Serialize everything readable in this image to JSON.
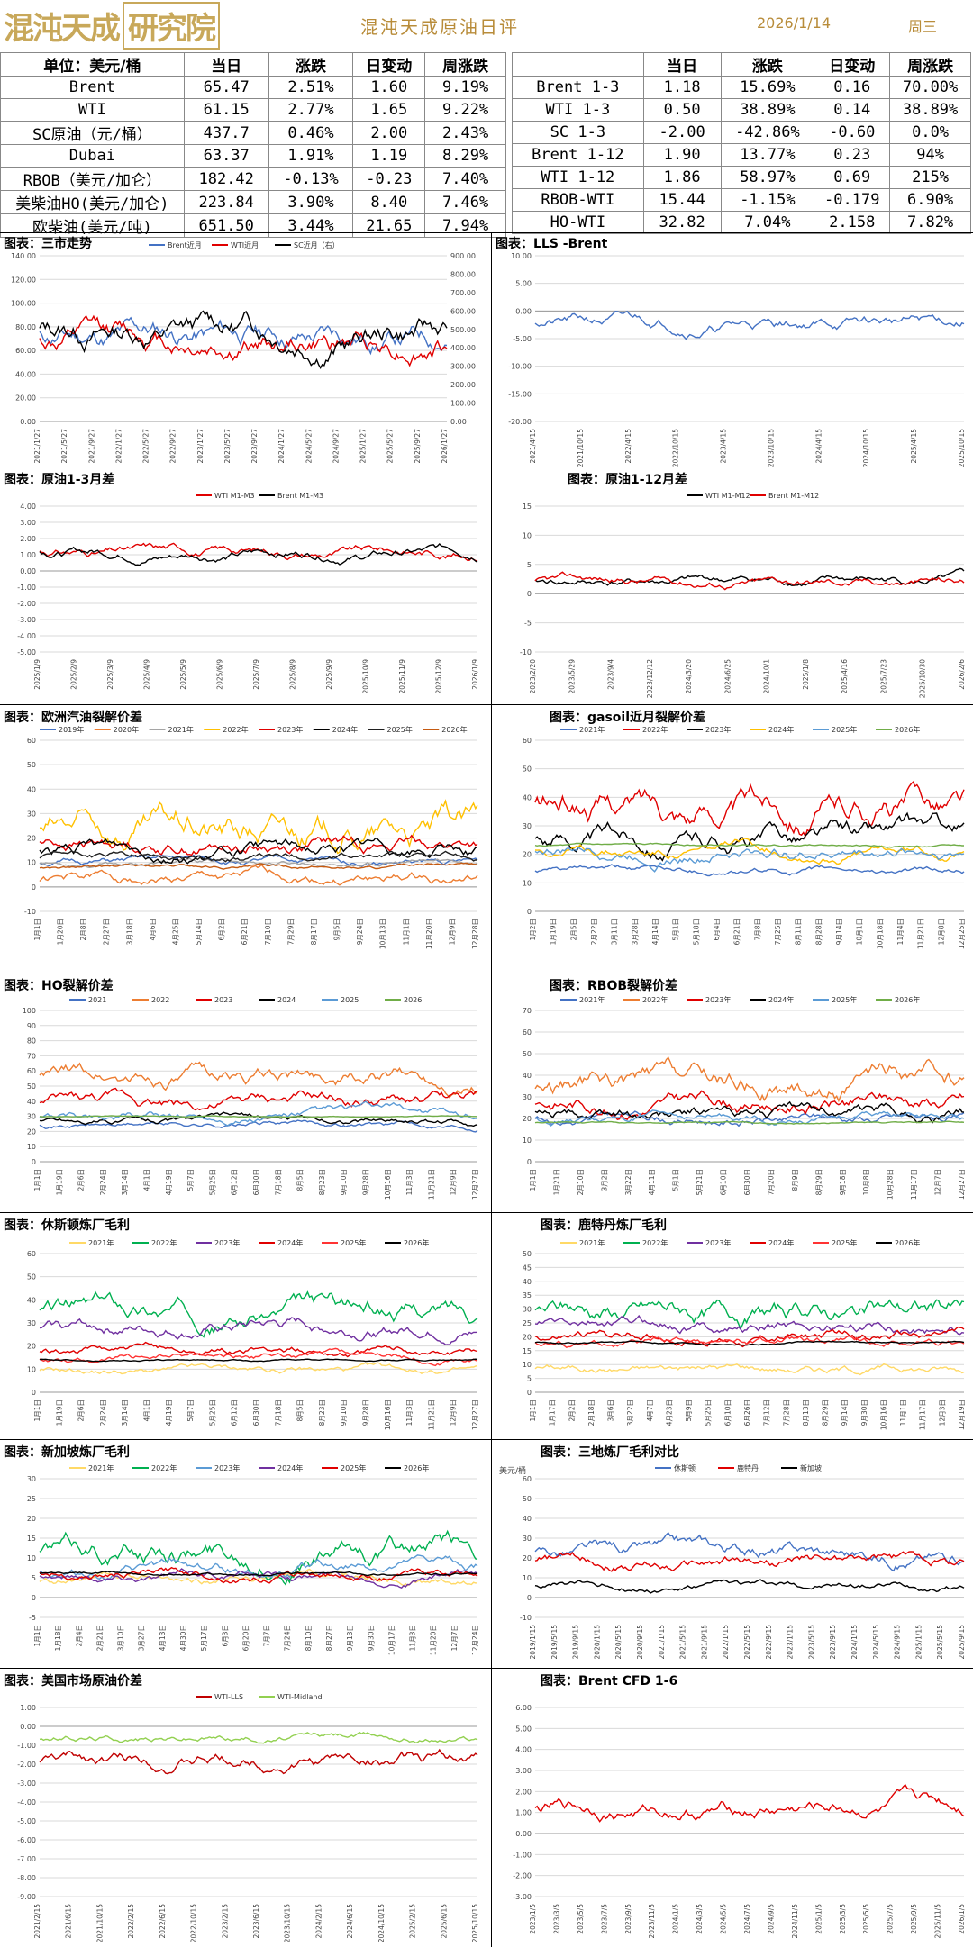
{
  "header": {
    "logo_text": "混沌天成",
    "logo_box": "研究院",
    "title": "混沌天成原油日评",
    "date": "2026/1/14",
    "weekday": "周三"
  },
  "left_table": {
    "columns": [
      "单位：美元/桶",
      "当日",
      "涨跌",
      "日变动",
      "周涨跌"
    ],
    "rows": [
      [
        "Brent",
        "65.47",
        "2.51%",
        "1.60",
        "9.19%"
      ],
      [
        "WTI",
        "61.15",
        "2.77%",
        "1.65",
        "9.22%"
      ],
      [
        "SC原油（元/桶）",
        "437.7",
        "0.46%",
        "2.00",
        "2.43%"
      ],
      [
        "Dubai",
        "63.37",
        "1.91%",
        "1.19",
        "8.29%"
      ],
      [
        "RBOB（美元/加仑）",
        "182.42",
        "-0.13%",
        "-0.23",
        "7.40%"
      ],
      [
        "美柴油HO(美元/加仑)",
        "223.84",
        "3.90%",
        "8.40",
        "7.46%"
      ],
      [
        "欧柴油(美元/吨)",
        "651.50",
        "3.44%",
        "21.65",
        "7.94%"
      ]
    ]
  },
  "right_table": {
    "columns": [
      "",
      "当日",
      "涨跌",
      "日变动",
      "周涨跌"
    ],
    "rows": [
      [
        "Brent 1-3",
        "1.18",
        "15.69%",
        "0.16",
        "70.00%"
      ],
      [
        "WTI 1-3",
        "0.50",
        "38.89%",
        "0.14",
        "38.89%"
      ],
      [
        "SC 1-3",
        "-2.00",
        "-42.86%",
        "-0.60",
        "0.0%"
      ],
      [
        "Brent 1-12",
        "1.90",
        "13.77%",
        "0.23",
        "94%"
      ],
      [
        "WTI 1-12",
        "1.86",
        "58.97%",
        "0.69",
        "215%"
      ],
      [
        "RBOB-WTI",
        "15.44",
        "-1.15%",
        "-0.179",
        "6.90%"
      ],
      [
        "HO-WTI",
        "32.82",
        "7.04%",
        "2.158",
        "7.82%"
      ]
    ]
  },
  "chart_data": [
    {
      "id": "c1",
      "panel_title": "图表：三市走势",
      "type": "line",
      "series": [
        {
          "name": "Brent近月",
          "color": "#4472c4",
          "seed": 11,
          "base": 72,
          "amp": 28
        },
        {
          "name": "WTI近月",
          "color": "#e00000",
          "seed": 12,
          "base": 68,
          "amp": 28
        },
        {
          "name": "SC近月（右）",
          "color": "#000000",
          "seed": 13,
          "base": 78,
          "amp": 30
        }
      ],
      "ylim": [
        0,
        140
      ],
      "yticks": [
        "0.00",
        "20.00",
        "40.00",
        "60.00",
        "80.00",
        "100.00",
        "120.00",
        "140.00"
      ],
      "y2ticks": [
        "0.00",
        "100.00",
        "200.00",
        "300.00",
        "400.00",
        "500.00",
        "600.00",
        "700.00",
        "800.00",
        "900.00"
      ],
      "xticks": [
        "2021/1/27",
        "2021/5/27",
        "2021/9/27",
        "2022/1/27",
        "2022/5/27",
        "2022/9/27",
        "2023/1/27",
        "2023/5/27",
        "2023/9/27",
        "2024/1/27",
        "2024/5/27",
        "2024/9/27",
        "2025/1/27",
        "2025/5/27",
        "2025/9/27",
        "2026/1/27"
      ]
    },
    {
      "id": "c2",
      "panel_title": "图表：LLS -Brent",
      "type": "line",
      "series": [
        {
          "name": "",
          "color": "#4472c4",
          "seed": 21,
          "base": -2,
          "amp": 3
        }
      ],
      "ylim": [
        -20,
        10
      ],
      "yticks": [
        "-20.00",
        "-15.00",
        "-10.00",
        "-5.00",
        "0.00",
        "5.00",
        "10.00"
      ],
      "xticks": [
        "2021/4/15",
        "2021/10/15",
        "2022/4/15",
        "2022/10/15",
        "2023/4/15",
        "2023/10/15",
        "2024/4/15",
        "2024/10/15",
        "2025/4/15",
        "2025/10/15"
      ]
    },
    {
      "id": "c3",
      "panel_title": "图表：原油1-3月差",
      "type": "line",
      "series": [
        {
          "name": "WTI M1-M3",
          "color": "#e00000",
          "seed": 31,
          "base": 1.2,
          "amp": 0.8
        },
        {
          "name": "Brent M1-M3",
          "color": "#000000",
          "seed": 32,
          "base": 1.2,
          "amp": 0.8
        }
      ],
      "ylim": [
        -5,
        4
      ],
      "yticks": [
        "-5.00",
        "-4.00",
        "-3.00",
        "-2.00",
        "-1.00",
        "0.00",
        "1.00",
        "2.00",
        "3.00",
        "4.00"
      ],
      "xticks": [
        "2025/1/9",
        "2025/2/9",
        "2025/3/9",
        "2025/4/9",
        "2025/5/9",
        "2025/6/9",
        "2025/7/9",
        "2025/8/9",
        "2025/9/9",
        "2025/10/9",
        "2025/11/9",
        "2025/12/9",
        "2026/1/9"
      ]
    },
    {
      "id": "c4",
      "panel_title": "图表：原油1-12月差",
      "type": "line",
      "series": [
        {
          "name": "WTI M1-M12",
          "color": "#000000",
          "seed": 41,
          "base": 2,
          "amp": 2
        },
        {
          "name": "Brent M1-M12",
          "color": "#e00000",
          "seed": 42,
          "base": 2,
          "amp": 2
        }
      ],
      "ylim": [
        -10,
        15
      ],
      "yticks": [
        "-10",
        "-5",
        "0",
        "5",
        "10",
        "15"
      ],
      "xticks": [
        "2023/2/20",
        "2023/5/29",
        "2023/9/4",
        "2023/12/12",
        "2024/3/20",
        "2024/6/25",
        "2024/10/1",
        "2025/1/8",
        "2025/4/16",
        "2025/7/23",
        "2025/10/30",
        "2026/2/6"
      ]
    },
    {
      "id": "c5",
      "panel_title": "图表：欧洲汽油裂解价差",
      "type": "line",
      "series": [
        {
          "name": "2019年",
          "color": "#4472c4",
          "seed": 51,
          "base": 10,
          "amp": 4
        },
        {
          "name": "2020年",
          "color": "#ed7d31",
          "seed": 52,
          "base": 3,
          "amp": 6
        },
        {
          "name": "2021年",
          "color": "#a5a5a5",
          "seed": 53,
          "base": 10,
          "amp": 3
        },
        {
          "name": "2022年",
          "color": "#ffc000",
          "seed": 54,
          "base": 22,
          "amp": 18
        },
        {
          "name": "2023年",
          "color": "#e00000",
          "seed": 55,
          "base": 18,
          "amp": 8
        },
        {
          "name": "2024年",
          "color": "#000000",
          "seed": 56,
          "base": 15,
          "amp": 8
        },
        {
          "name": "2025年",
          "color": "#1f1f1f",
          "seed": 57,
          "base": 12,
          "amp": 4
        },
        {
          "name": "2026年",
          "color": "#c55a11",
          "seed": 58,
          "base": 8,
          "amp": 2
        }
      ],
      "ylim": [
        -10,
        60
      ],
      "yticks": [
        "-10",
        "0",
        "10",
        "20",
        "30",
        "40",
        "50",
        "60"
      ],
      "xticks": [
        "1月1日",
        "1月20日",
        "2月8日",
        "2月27日",
        "3月18日",
        "4月6日",
        "4月25日",
        "5月14日",
        "6月2日",
        "6月21日",
        "7月10日",
        "7月29日",
        "8月17日",
        "9月5日",
        "9月24日",
        "10月13日",
        "11月1日",
        "11月20日",
        "12月9日",
        "12月28日"
      ]
    },
    {
      "id": "c6",
      "panel_title": "图表：gasoil近月裂解价差",
      "type": "line",
      "series": [
        {
          "name": "2021年",
          "color": "#4472c4",
          "seed": 61,
          "base": 14,
          "amp": 3
        },
        {
          "name": "2022年",
          "color": "#e00000",
          "seed": 62,
          "base": 38,
          "amp": 14
        },
        {
          "name": "2023年",
          "color": "#000000",
          "seed": 63,
          "base": 26,
          "amp": 10
        },
        {
          "name": "2024年",
          "color": "#ffc000",
          "seed": 64,
          "base": 22,
          "amp": 5
        },
        {
          "name": "2025年",
          "color": "#5b9bd5",
          "seed": 65,
          "base": 22,
          "amp": 6
        },
        {
          "name": "2026年",
          "color": "#70ad47",
          "seed": 66,
          "base": 23,
          "amp": 1
        }
      ],
      "ylim": [
        0,
        60
      ],
      "yticks": [
        "0",
        "10",
        "20",
        "30",
        "40",
        "50",
        "60"
      ],
      "xticks": [
        "1月2日",
        "1月19日",
        "2月5日",
        "2月22日",
        "3月11日",
        "3月28日",
        "4月14日",
        "5月1日",
        "5月18日",
        "6月4日",
        "6月21日",
        "7月8日",
        "7月25日",
        "8月11日",
        "8月28日",
        "9月14日",
        "10月1日",
        "10月18日",
        "11月4日",
        "11月21日",
        "12月8日",
        "12月25日"
      ]
    },
    {
      "id": "c7",
      "panel_title": "图表：HO裂解价差",
      "type": "line",
      "series": [
        {
          "name": "2021",
          "color": "#4472c4",
          "seed": 71,
          "base": 25,
          "amp": 5
        },
        {
          "name": "2022",
          "color": "#ed7d31",
          "seed": 72,
          "base": 55,
          "amp": 15
        },
        {
          "name": "2023",
          "color": "#e00000",
          "seed": 73,
          "base": 38,
          "amp": 12
        },
        {
          "name": "2024",
          "color": "#000000",
          "seed": 74,
          "base": 27,
          "amp": 6
        },
        {
          "name": "2025",
          "color": "#5b9bd5",
          "seed": 75,
          "base": 30,
          "amp": 8
        },
        {
          "name": "2026",
          "color": "#70ad47",
          "seed": 76,
          "base": 30,
          "amp": 1
        }
      ],
      "ylim": [
        0,
        100
      ],
      "yticks": [
        "0",
        "10",
        "20",
        "30",
        "40",
        "50",
        "60",
        "70",
        "80",
        "90",
        "100"
      ],
      "xticks": [
        "1月1日",
        "1月19日",
        "2月6日",
        "2月24日",
        "3月14日",
        "4月1日",
        "4月19日",
        "5月7日",
        "5月25日",
        "6月12日",
        "6月30日",
        "7月18日",
        "8月5日",
        "8月23日",
        "9月10日",
        "9月28日",
        "10月16日",
        "11月3日",
        "11月21日",
        "12月9日",
        "12月27日"
      ]
    },
    {
      "id": "c8",
      "panel_title": "图表：RBOB裂解价差",
      "type": "line",
      "series": [
        {
          "name": "2021年",
          "color": "#4472c4",
          "seed": 81,
          "base": 20,
          "amp": 6
        },
        {
          "name": "2022年",
          "color": "#ed7d31",
          "seed": 82,
          "base": 35,
          "amp": 14
        },
        {
          "name": "2023年",
          "color": "#e00000",
          "seed": 83,
          "base": 28,
          "amp": 10
        },
        {
          "name": "2024年",
          "color": "#000000",
          "seed": 84,
          "base": 22,
          "amp": 8
        },
        {
          "name": "2025年",
          "color": "#5b9bd5",
          "seed": 85,
          "base": 20,
          "amp": 5
        },
        {
          "name": "2026年",
          "color": "#70ad47",
          "seed": 86,
          "base": 18,
          "amp": 1
        }
      ],
      "ylim": [
        0,
        70
      ],
      "yticks": [
        "0",
        "10",
        "20",
        "30",
        "40",
        "50",
        "60",
        "70"
      ],
      "xticks": [
        "1月1日",
        "1月21日",
        "2月10日",
        "3月2日",
        "3月22日",
        "4月11日",
        "5月1日",
        "5月21日",
        "6月10日",
        "6月30日",
        "7月20日",
        "8月9日",
        "8月29日",
        "9月18日",
        "10月8日",
        "10月28日",
        "11月17日",
        "12月7日",
        "12月27日"
      ]
    },
    {
      "id": "c9",
      "panel_title": "图表：休斯顿炼厂毛利",
      "type": "line",
      "series": [
        {
          "name": "2021年",
          "color": "#ffd966",
          "seed": 91,
          "base": 9,
          "amp": 4
        },
        {
          "name": "2022年",
          "color": "#00b050",
          "seed": 92,
          "base": 35,
          "amp": 12
        },
        {
          "name": "2023年",
          "color": "#7030a0",
          "seed": 93,
          "base": 28,
          "amp": 8
        },
        {
          "name": "2024年",
          "color": "#e00000",
          "seed": 94,
          "base": 18,
          "amp": 5
        },
        {
          "name": "2025年",
          "color": "#ff3333",
          "seed": 95,
          "base": 15,
          "amp": 4
        },
        {
          "name": "2026年",
          "color": "#000000",
          "seed": 96,
          "base": 14,
          "amp": 1
        }
      ],
      "ylim": [
        0,
        60
      ],
      "yticks": [
        "0",
        "10",
        "20",
        "30",
        "40",
        "50",
        "60"
      ],
      "xticks": [
        "1月1日",
        "1月19日",
        "2月6日",
        "2月24日",
        "3月14日",
        "4月1日",
        "4月19日",
        "5月7日",
        "5月25日",
        "6月12日",
        "6月30日",
        "7月18日",
        "8月5日",
        "8月23日",
        "9月10日",
        "9月28日",
        "10月16日",
        "11月3日",
        "11月21日",
        "12月9日",
        "12月27日"
      ]
    },
    {
      "id": "c10",
      "panel_title": "图表：鹿特丹炼厂毛利",
      "type": "line",
      "series": [
        {
          "name": "2021年",
          "color": "#ffd966",
          "seed": 101,
          "base": 9,
          "amp": 4
        },
        {
          "name": "2022年",
          "color": "#00b050",
          "seed": 102,
          "base": 28,
          "amp": 10
        },
        {
          "name": "2023年",
          "color": "#7030a0",
          "seed": 103,
          "base": 24,
          "amp": 6
        },
        {
          "name": "2024年",
          "color": "#e00000",
          "seed": 104,
          "base": 20,
          "amp": 5
        },
        {
          "name": "2025年",
          "color": "#ff3333",
          "seed": 105,
          "base": 18,
          "amp": 4
        },
        {
          "name": "2026年",
          "color": "#000000",
          "seed": 106,
          "base": 18,
          "amp": 1
        }
      ],
      "ylim": [
        0,
        50
      ],
      "yticks": [
        "0",
        "5",
        "10",
        "15",
        "20",
        "25",
        "30",
        "35",
        "40",
        "45",
        "50"
      ],
      "xticks": [
        "1月1日",
        "1月17日",
        "2月2日",
        "2月18日",
        "3月6日",
        "3月22日",
        "4月7日",
        "4月23日",
        "5月9日",
        "5月25日",
        "6月10日",
        "6月26日",
        "7月12日",
        "7月28日",
        "8月13日",
        "8月29日",
        "9月14日",
        "9月30日",
        "10月16日",
        "11月1日",
        "11月17日",
        "12月3日",
        "12月19日"
      ]
    },
    {
      "id": "c11",
      "panel_title": "图表：新加坡炼厂毛利",
      "type": "line",
      "series": [
        {
          "name": "2021年",
          "color": "#ffd966",
          "seed": 111,
          "base": 4,
          "amp": 3
        },
        {
          "name": "2022年",
          "color": "#00b050",
          "seed": 112,
          "base": 12,
          "amp": 8
        },
        {
          "name": "2023年",
          "color": "#5b9bd5",
          "seed": 113,
          "base": 7,
          "amp": 4
        },
        {
          "name": "2024年",
          "color": "#7030a0",
          "seed": 114,
          "base": 6,
          "amp": 3
        },
        {
          "name": "2025年",
          "color": "#e00000",
          "seed": 115,
          "base": 6,
          "amp": 3
        },
        {
          "name": "2026年",
          "color": "#000000",
          "seed": 116,
          "base": 6,
          "amp": 1
        }
      ],
      "ylim": [
        -5,
        30
      ],
      "yticks": [
        "-5",
        "0",
        "5",
        "10",
        "15",
        "20",
        "25",
        "30"
      ],
      "xticks": [
        "1月1日",
        "1月18日",
        "2月4日",
        "2月21日",
        "3月10日",
        "3月27日",
        "4月13日",
        "4月30日",
        "5月17日",
        "6月3日",
        "6月20日",
        "7月7日",
        "7月24日",
        "8月10日",
        "8月27日",
        "9月13日",
        "9月30日",
        "10月17日",
        "11月3日",
        "11月20日",
        "12月7日",
        "12月24日"
      ]
    },
    {
      "id": "c12",
      "panel_title": "图表：三地炼厂毛利对比",
      "type": "line",
      "ylabel": "美元/桶",
      "series": [
        {
          "name": "休斯顿",
          "color": "#4472c4",
          "seed": 121,
          "base": 22,
          "amp": 10
        },
        {
          "name": "鹿特丹",
          "color": "#e00000",
          "seed": 122,
          "base": 18,
          "amp": 8
        },
        {
          "name": "新加坡",
          "color": "#000000",
          "seed": 123,
          "base": 6,
          "amp": 5
        }
      ],
      "ylim": [
        -10,
        60
      ],
      "yticks": [
        "-10",
        "0",
        "10",
        "20",
        "30",
        "40",
        "50",
        "60"
      ],
      "xticks": [
        "2019/1/15",
        "2019/5/15",
        "2019/9/15",
        "2020/1/15",
        "2020/5/15",
        "2020/9/15",
        "2021/1/15",
        "2021/5/15",
        "2021/9/15",
        "2022/1/15",
        "2022/5/15",
        "2022/9/15",
        "2023/1/15",
        "2023/5/15",
        "2023/9/15",
        "2024/1/15",
        "2024/5/15",
        "2024/9/15",
        "2025/1/15",
        "2025/5/15",
        "2025/9/15"
      ]
    },
    {
      "id": "c13",
      "panel_title": "图表：美国市场原油价差",
      "type": "line",
      "series": [
        {
          "name": "WTI-LLS",
          "color": "#c00000",
          "seed": 131,
          "base": -1.8,
          "amp": 1
        },
        {
          "name": "WTI-Midland",
          "color": "#92d050",
          "seed": 132,
          "base": -0.6,
          "amp": 0.5
        }
      ],
      "ylim": [
        -9,
        1
      ],
      "yticks": [
        "-9.00",
        "-8.00",
        "-7.00",
        "-6.00",
        "-5.00",
        "-4.00",
        "-3.00",
        "-2.00",
        "-1.00",
        "0.00",
        "1.00"
      ],
      "xticks": [
        "2021/2/15",
        "2021/6/15",
        "2021/10/15",
        "2022/2/15",
        "2022/6/15",
        "2022/10/15",
        "2023/2/15",
        "2023/6/15",
        "2023/10/15",
        "2024/2/15",
        "2024/6/15",
        "2024/10/15",
        "2025/2/15",
        "2025/6/15",
        "2025/10/15"
      ]
    },
    {
      "id": "c14",
      "panel_title": "图表：Brent CFD 1-6",
      "type": "line",
      "series": [
        {
          "name": "",
          "color": "#e00000",
          "seed": 141,
          "base": 1.2,
          "amp": 1
        }
      ],
      "ylim": [
        -3,
        6
      ],
      "yticks": [
        "-3.00",
        "-2.00",
        "-1.00",
        "0.00",
        "1.00",
        "2.00",
        "3.00",
        "4.00",
        "5.00",
        "6.00"
      ],
      "xticks": [
        "2023/1/5",
        "2023/3/5",
        "2023/5/5",
        "2023/7/5",
        "2023/9/5",
        "2023/11/5",
        "2024/1/5",
        "2024/3/5",
        "2024/5/5",
        "2024/7/5",
        "2024/9/5",
        "2024/11/5",
        "2025/1/5",
        "2025/3/5",
        "2025/5/5",
        "2025/7/5",
        "2025/9/5",
        "2025/11/5",
        "2026/1/5"
      ]
    }
  ]
}
